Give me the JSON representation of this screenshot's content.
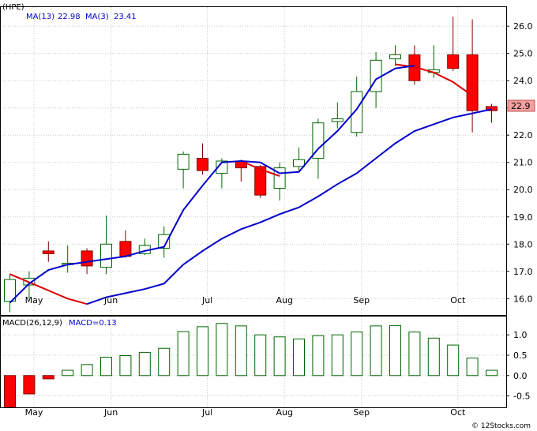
{
  "chart_data": [
    {
      "type": "candlestick",
      "ticker": "(HPE)",
      "legend": [
        {
          "label": "MA(13)",
          "value": "22.98",
          "color": "#0000cc"
        },
        {
          "label": "MA(3)",
          "value": "23.41",
          "color": "#0000cc"
        }
      ],
      "last_price_label": "22.9",
      "ylim": [
        15.4,
        26.7
      ],
      "yticks": [
        16.0,
        17.0,
        18.0,
        19.0,
        20.0,
        21.0,
        22.0,
        23.0,
        24.0,
        25.0,
        26.0
      ],
      "ytick_labels": [
        "16.0",
        "17.0",
        "18.0",
        "19.0",
        "20.0",
        "21.0",
        "22.0",
        "23.0",
        "24.0",
        "25.0",
        "26.0"
      ],
      "xticks": [
        {
          "label": "May",
          "index": 1.25
        },
        {
          "label": "Jun",
          "index": 5.25
        },
        {
          "label": "Jul",
          "index": 10.25
        },
        {
          "label": "Aug",
          "index": 14.25
        },
        {
          "label": "Sep",
          "index": 18.25
        },
        {
          "label": "Oct",
          "index": 23.25
        }
      ],
      "colors": {
        "up_fill": "#ffffff",
        "up_border": "#006600",
        "down_fill": "#ff0000",
        "down_border": "#800000",
        "ma_long": "#0000cc",
        "ma_short": "#dd0000"
      },
      "candles": [
        {
          "open": 15.9,
          "high": 16.9,
          "low": 15.5,
          "close": 16.7
        },
        {
          "open": 16.5,
          "high": 17.0,
          "low": 16.0,
          "close": 16.75
        },
        {
          "open": 17.75,
          "high": 18.1,
          "low": 17.35,
          "close": 17.65
        },
        {
          "open": 17.25,
          "high": 17.95,
          "low": 16.95,
          "close": 17.3
        },
        {
          "open": 17.75,
          "high": 17.85,
          "low": 16.9,
          "close": 17.2
        },
        {
          "open": 17.15,
          "high": 19.05,
          "low": 16.9,
          "close": 18.0
        },
        {
          "open": 18.1,
          "high": 18.5,
          "low": 17.5,
          "close": 17.55
        },
        {
          "open": 17.65,
          "high": 18.2,
          "low": 17.6,
          "close": 17.95
        },
        {
          "open": 17.85,
          "high": 18.65,
          "low": 17.5,
          "close": 18.35
        },
        {
          "open": 20.75,
          "high": 21.4,
          "low": 20.05,
          "close": 21.3
        },
        {
          "open": 21.15,
          "high": 21.7,
          "low": 20.55,
          "close": 20.7
        },
        {
          "open": 20.6,
          "high": 21.15,
          "low": 20.05,
          "close": 21.05
        },
        {
          "open": 21.05,
          "high": 21.1,
          "low": 20.3,
          "close": 20.8
        },
        {
          "open": 20.85,
          "high": 20.9,
          "low": 19.7,
          "close": 19.8
        },
        {
          "open": 20.05,
          "high": 21.0,
          "low": 19.6,
          "close": 20.8
        },
        {
          "open": 20.85,
          "high": 21.55,
          "low": 20.7,
          "close": 21.1
        },
        {
          "open": 21.15,
          "high": 22.6,
          "low": 20.4,
          "close": 22.45
        },
        {
          "open": 22.5,
          "high": 23.2,
          "low": 22.25,
          "close": 22.6
        },
        {
          "open": 22.1,
          "high": 24.15,
          "low": 21.95,
          "close": 23.6
        },
        {
          "open": 23.6,
          "high": 25.05,
          "low": 23.0,
          "close": 24.75
        },
        {
          "open": 24.8,
          "high": 25.3,
          "low": 24.55,
          "close": 24.95
        },
        {
          "open": 24.95,
          "high": 25.3,
          "low": 23.85,
          "close": 24.0
        },
        {
          "open": 24.3,
          "high": 25.3,
          "low": 24.1,
          "close": 24.4
        },
        {
          "open": 24.95,
          "high": 26.35,
          "low": 24.35,
          "close": 24.45
        },
        {
          "open": 24.95,
          "high": 26.25,
          "low": 22.1,
          "close": 22.9
        },
        {
          "open": 23.05,
          "high": 23.15,
          "low": 22.45,
          "close": 22.9
        }
      ],
      "ma13": [
        15.85,
        16.55,
        17.05,
        17.25,
        17.35,
        17.45,
        17.55,
        17.75,
        17.9,
        19.25,
        20.15,
        21.0,
        21.05,
        21.0,
        20.6,
        20.65,
        21.5,
        22.15,
        22.95,
        24.05,
        24.45,
        24.55
      ],
      "ma13_start": 0,
      "ma3": [
        15.8,
        16.05,
        16.2,
        16.35,
        16.55,
        17.25,
        17.75,
        18.2,
        18.55,
        18.8,
        19.1,
        19.35,
        19.75,
        20.2,
        20.6,
        21.15,
        21.7,
        22.15,
        22.4,
        22.65,
        22.8,
        22.95
      ],
      "ma3_start": 4,
      "ma_red": [
        16.9,
        16.6,
        16.3,
        16.0,
        15.8
      ],
      "ma_red_start": 0,
      "ma_red2": [
        21.05,
        20.75,
        20.5
      ],
      "ma_red2_start": 12,
      "ma_red3": [
        24.6,
        24.5,
        24.3,
        23.95,
        23.45
      ],
      "ma_red3_start": 20
    },
    {
      "type": "bar",
      "legend": [
        {
          "label": "MACD(26,12,9)",
          "color": "#000000"
        },
        {
          "label": "MACD=0.13",
          "color": "#0000cc"
        }
      ],
      "ylim": [
        -0.78,
        1.45
      ],
      "yticks": [
        -0.5,
        0.0,
        0.5,
        1.0
      ],
      "ytick_labels": [
        "-0.5",
        "0.0",
        "0.5",
        "1.0"
      ],
      "values": [
        -0.78,
        -0.45,
        -0.08,
        0.13,
        0.27,
        0.45,
        0.49,
        0.57,
        0.67,
        1.08,
        1.2,
        1.28,
        1.22,
        1.0,
        0.95,
        0.9,
        0.98,
        1.0,
        1.07,
        1.22,
        1.23,
        1.07,
        0.92,
        0.75,
        0.43,
        0.13
      ],
      "colors": {
        "positive": "#006600",
        "negative": "#ff0000"
      }
    }
  ],
  "watermark": "© 12Stocks.com"
}
